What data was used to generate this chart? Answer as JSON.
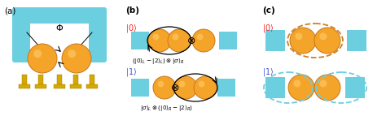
{
  "bg_color": "#ffffff",
  "label_a": "(a)",
  "label_b": "(b)",
  "label_c": "(c)",
  "orange": "#F5A42A",
  "orange_edge": "#C8761A",
  "orange_hl": "#FFD070",
  "cyan": "#6BCFDF",
  "cyan_edge": "#4AAFBF",
  "gold": "#D4AA00",
  "gold_dark": "#A07800",
  "red_label": "#FF2222",
  "blue_label": "#4455CC",
  "black": "#111111"
}
